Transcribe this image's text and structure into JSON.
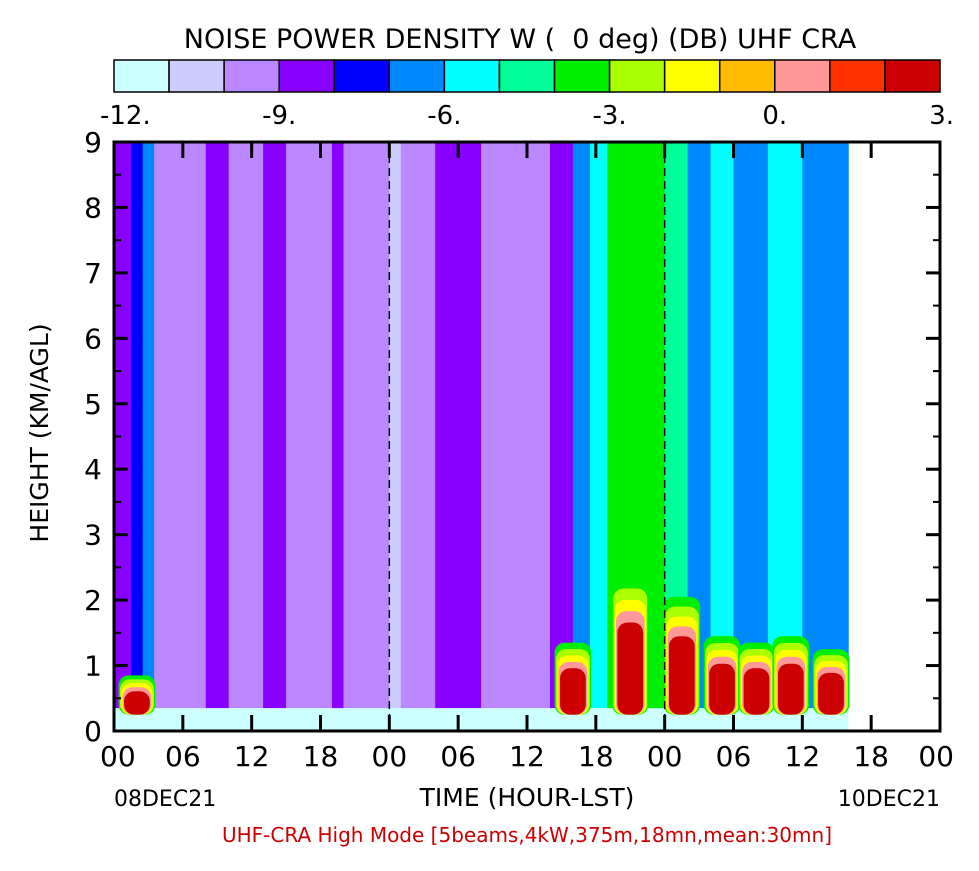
{
  "chart_data": {
    "type": "heatmap",
    "title": "NOISE POWER DENSITY W (  0 deg) (DB) UHF CRA",
    "colorbar": {
      "colors": [
        "#ccffff",
        "#ccccff",
        "#bb88ff",
        "#8800ff",
        "#0000ff",
        "#0088ff",
        "#00ffff",
        "#00ff99",
        "#00ee00",
        "#aaff00",
        "#ffff00",
        "#ffbb00",
        "#ff9999",
        "#ff3300",
        "#cc0000"
      ],
      "tick_labels": [
        "-12.",
        "-9.",
        "-6.",
        "-3.",
        "0.",
        "3."
      ],
      "tick_values": [
        -12,
        -9,
        -6,
        -3,
        0,
        3
      ],
      "range": [
        -12,
        3
      ]
    },
    "ylabel": "HEIGHT (KM/AGL)",
    "xlabel": "TIME (HOUR-LST)",
    "y_ticks": [
      "0",
      "1",
      "2",
      "3",
      "4",
      "5",
      "6",
      "7",
      "8",
      "9"
    ],
    "ylim": [
      0,
      9
    ],
    "x_ticks": [
      "00",
      "06",
      "12",
      "18",
      "00",
      "06",
      "12",
      "18",
      "00",
      "06",
      "12",
      "18",
      "00"
    ],
    "x_range_hours": [
      0,
      72
    ],
    "data_end_hour": 64,
    "date_start": "08DEC21",
    "date_end": "10DEC21",
    "day_boundaries_hours": [
      24,
      48
    ],
    "footer": "UHF-CRA High Mode [5beams,4kW,375m,18mn,mean:30mn]",
    "footer_color": "#cc0000",
    "segments": [
      {
        "t0": 0,
        "t1": 1.5,
        "value": -8.5
      },
      {
        "t0": 1.5,
        "t1": 2.5,
        "value": -7.5
      },
      {
        "t0": 2.5,
        "t1": 3.5,
        "value": -6.5
      },
      {
        "t0": 3.5,
        "t1": 5,
        "value": -9.5
      },
      {
        "t0": 5,
        "t1": 8,
        "value": -10
      },
      {
        "t0": 8,
        "t1": 10,
        "value": -8.5
      },
      {
        "t0": 10,
        "t1": 13,
        "value": -10
      },
      {
        "t0": 13,
        "t1": 15,
        "value": -8.5
      },
      {
        "t0": 15,
        "t1": 19,
        "value": -10
      },
      {
        "t0": 19,
        "t1": 20,
        "value": -8.5
      },
      {
        "t0": 20,
        "t1": 24,
        "value": -10
      },
      {
        "t0": 24,
        "t1": 25,
        "value": -11
      },
      {
        "t0": 25,
        "t1": 28,
        "value": -10
      },
      {
        "t0": 28,
        "t1": 32,
        "value": -8.5
      },
      {
        "t0": 32,
        "t1": 38,
        "value": -10
      },
      {
        "t0": 38,
        "t1": 40,
        "value": -9
      },
      {
        "t0": 40,
        "t1": 41.5,
        "value": -7
      },
      {
        "t0": 41.5,
        "t1": 43,
        "value": -5.5
      },
      {
        "t0": 43,
        "t1": 48,
        "value": -4
      },
      {
        "t0": 48,
        "t1": 50,
        "value": -5
      },
      {
        "t0": 50,
        "t1": 52,
        "value": -6.5
      },
      {
        "t0": 52,
        "t1": 54,
        "value": -5.5
      },
      {
        "t0": 54,
        "t1": 57,
        "value": -6.5
      },
      {
        "t0": 57,
        "t1": 60,
        "value": -6
      },
      {
        "t0": 60,
        "t1": 64,
        "value": -6.5
      }
    ],
    "low_level_peaks": [
      {
        "t": 2.0,
        "height_km": 0.6,
        "value": 3
      },
      {
        "t": 40.0,
        "height_km": 1.1,
        "value": 3
      },
      {
        "t": 45.0,
        "height_km": 2.1,
        "value": 3
      },
      {
        "t": 49.5,
        "height_km": 1.8,
        "value": 3
      },
      {
        "t": 53.0,
        "height_km": 1.2,
        "value": 3
      },
      {
        "t": 56.0,
        "height_km": 1.1,
        "value": 3
      },
      {
        "t": 59.0,
        "height_km": 1.2,
        "value": 3
      },
      {
        "t": 62.5,
        "height_km": 1.0,
        "value": 3
      }
    ]
  }
}
